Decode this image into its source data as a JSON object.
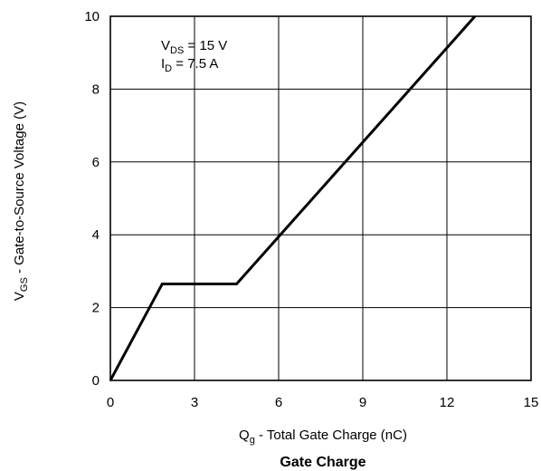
{
  "chart_data": {
    "type": "line",
    "title": "Gate Charge",
    "xlabel": {
      "main": "Q",
      "sub": "g",
      "rest": " - Total Gate Charge (nC)"
    },
    "ylabel": {
      "main": "V",
      "sub": "GS",
      "rest": " - Gate-to-Source Voltage (V)"
    },
    "xlim": [
      0,
      15
    ],
    "ylim": [
      0,
      10
    ],
    "xticks": [
      "0",
      "3",
      "6",
      "9",
      "12",
      "15"
    ],
    "yticks": [
      "0",
      "2",
      "4",
      "6",
      "8",
      "10"
    ],
    "grid": true,
    "annotations": [
      {
        "main": "V",
        "sub": "DS",
        "rest": " = 15 V"
      },
      {
        "main": "I",
        "sub": "D",
        "rest": " = 7.5 A"
      }
    ],
    "series": [
      {
        "x": [
          0,
          1.85,
          4.5,
          13.0
        ],
        "y": [
          0,
          2.65,
          2.65,
          10.0
        ]
      }
    ],
    "line_color": "#000000"
  }
}
